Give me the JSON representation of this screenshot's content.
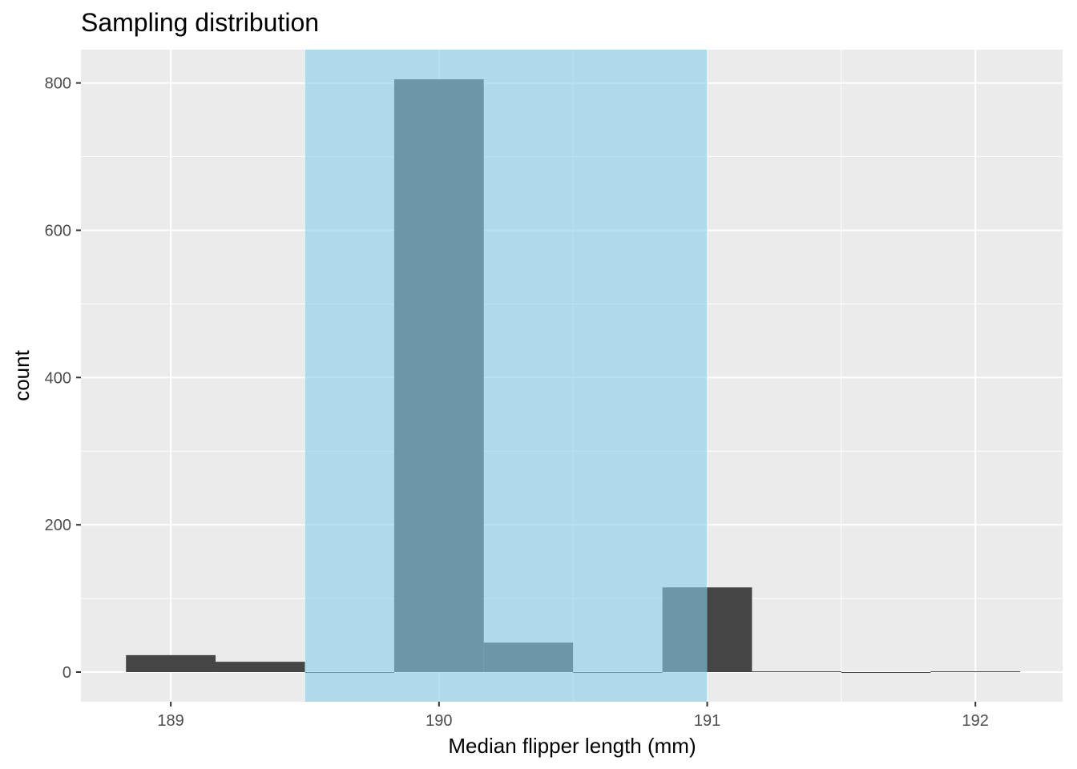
{
  "chart_data": {
    "type": "histogram",
    "title": "Sampling distribution",
    "x_label": "Median flipper length (mm)",
    "y_label": "count",
    "bins": [
      188.833,
      189.167,
      189.5,
      189.833,
      190.167,
      190.5,
      190.833,
      191.167,
      191.5,
      191.833,
      192.167
    ],
    "values": [
      23,
      14,
      0,
      805,
      40,
      0,
      115,
      1,
      0,
      1
    ],
    "color": "#454545",
    "interval": [
      189.5,
      191
    ],
    "interval_color": "#87ceeb",
    "xlim": [
      188.665,
      192.325
    ],
    "xticks": [
      189,
      190,
      191,
      192
    ],
    "ylim": [
      -40.25,
      845.25
    ],
    "yticks": [
      0,
      200,
      400,
      600,
      800
    ],
    "grid": true
  }
}
